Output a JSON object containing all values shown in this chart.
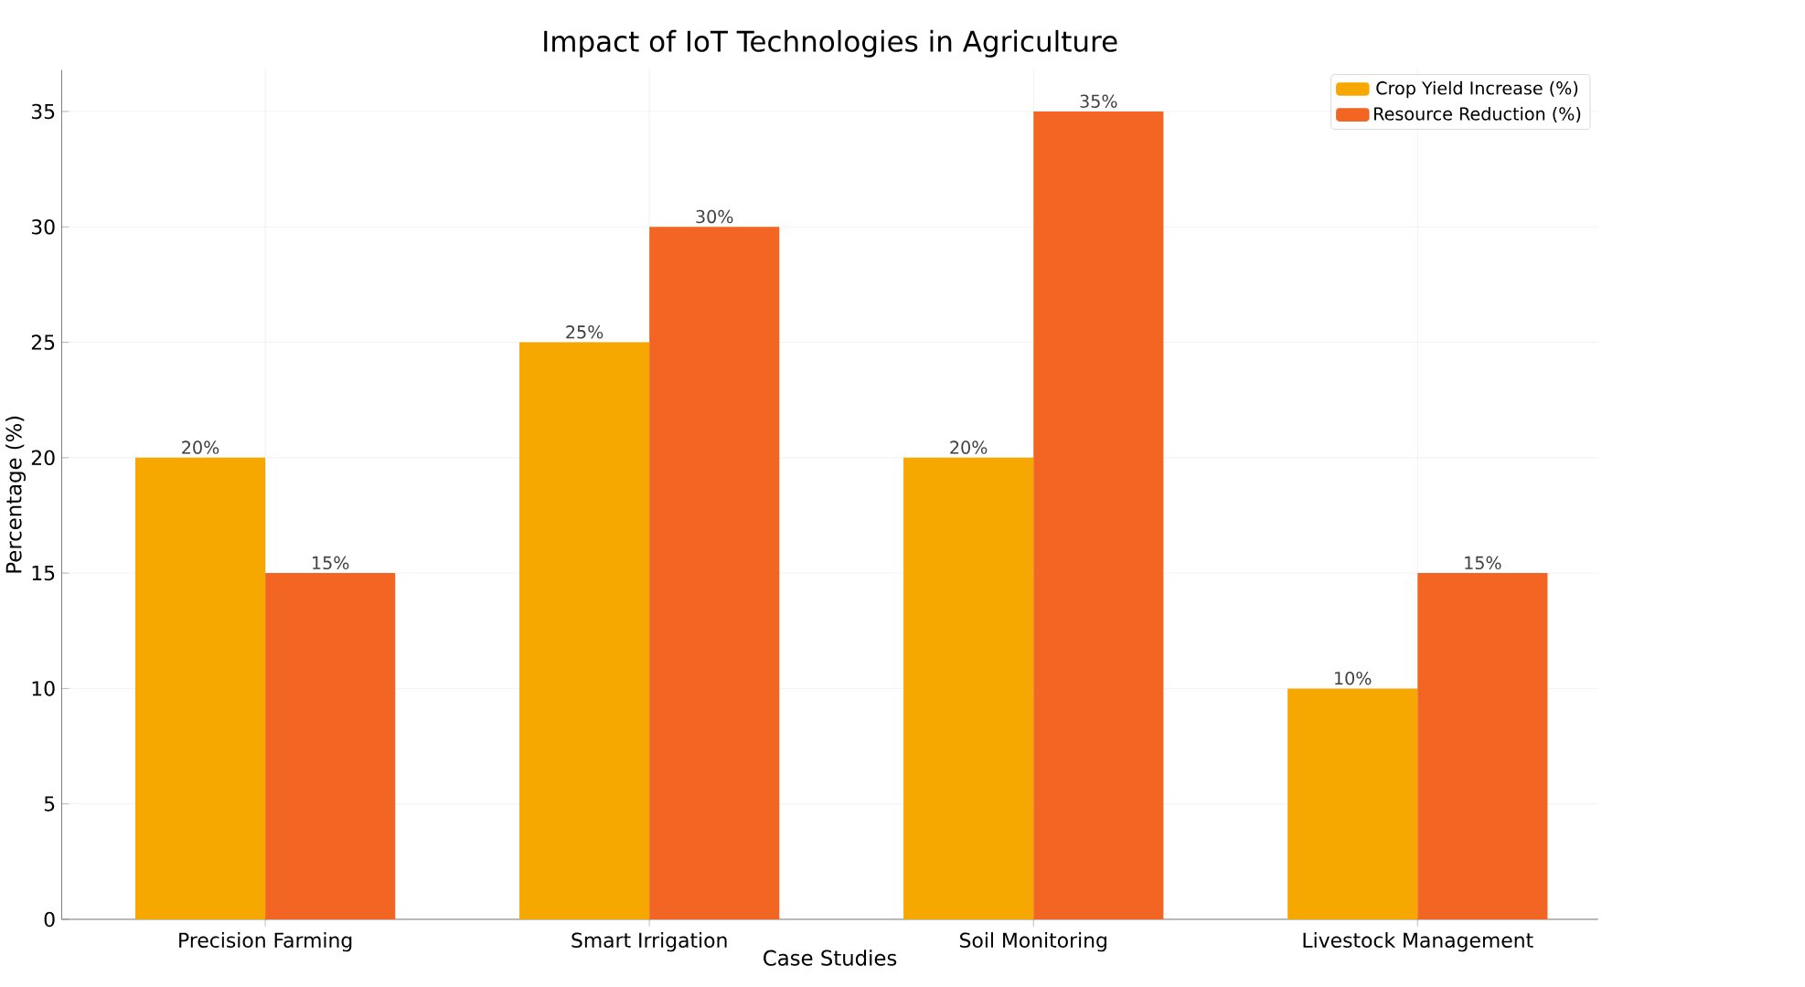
{
  "chart_data": {
    "type": "bar",
    "title": "Impact of IoT Technologies in Agriculture",
    "xlabel": "Case Studies",
    "ylabel": "Percentage (%)",
    "categories": [
      "Precision Farming",
      "Smart Irrigation",
      "Soil Monitoring",
      "Livestock Management"
    ],
    "series": [
      {
        "name": "Crop Yield Increase (%)",
        "color": "#f7a800",
        "values": [
          20,
          25,
          20,
          10
        ],
        "value_labels": [
          "20%",
          "25%",
          "20%",
          "10%"
        ]
      },
      {
        "name": "Resource Reduction (%)",
        "color": "#f26522",
        "values": [
          15,
          30,
          35,
          15
        ],
        "value_labels": [
          "15%",
          "30%",
          "35%",
          "15%"
        ]
      }
    ],
    "ylim": [
      0,
      36.8
    ],
    "yticks": [
      0,
      5,
      10,
      15,
      20,
      25,
      30,
      35
    ],
    "grid": true,
    "legend": "top right"
  }
}
